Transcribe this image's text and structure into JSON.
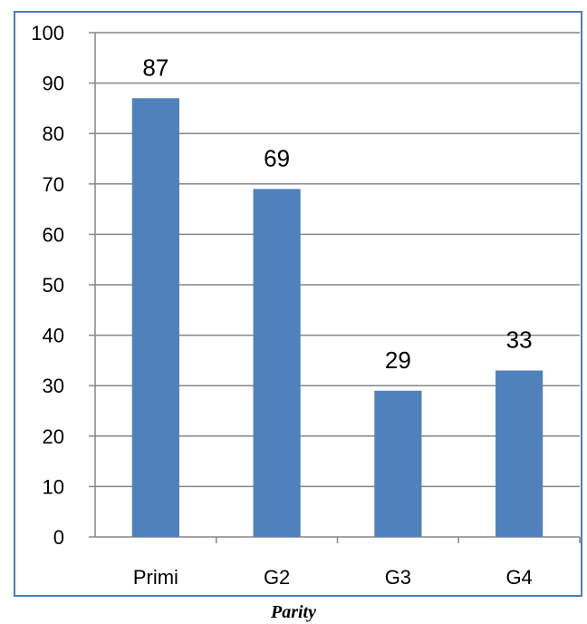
{
  "chart_data": {
    "type": "bar",
    "categories": [
      "Primi",
      "G2",
      "G3",
      "G4"
    ],
    "values": [
      87,
      69,
      29,
      33
    ],
    "data_labels": [
      "87",
      "69",
      "29",
      "33"
    ],
    "title": "",
    "xlabel": "Parity",
    "ylabel": "",
    "ylim": [
      0,
      100
    ],
    "yticks": [
      0,
      10,
      20,
      30,
      40,
      50,
      60,
      70,
      80,
      90,
      100
    ],
    "grid": true,
    "legend": "none",
    "bar_color": "#4f81bd",
    "grid_color": "#868686",
    "frame_color": "#4a7ebb"
  }
}
